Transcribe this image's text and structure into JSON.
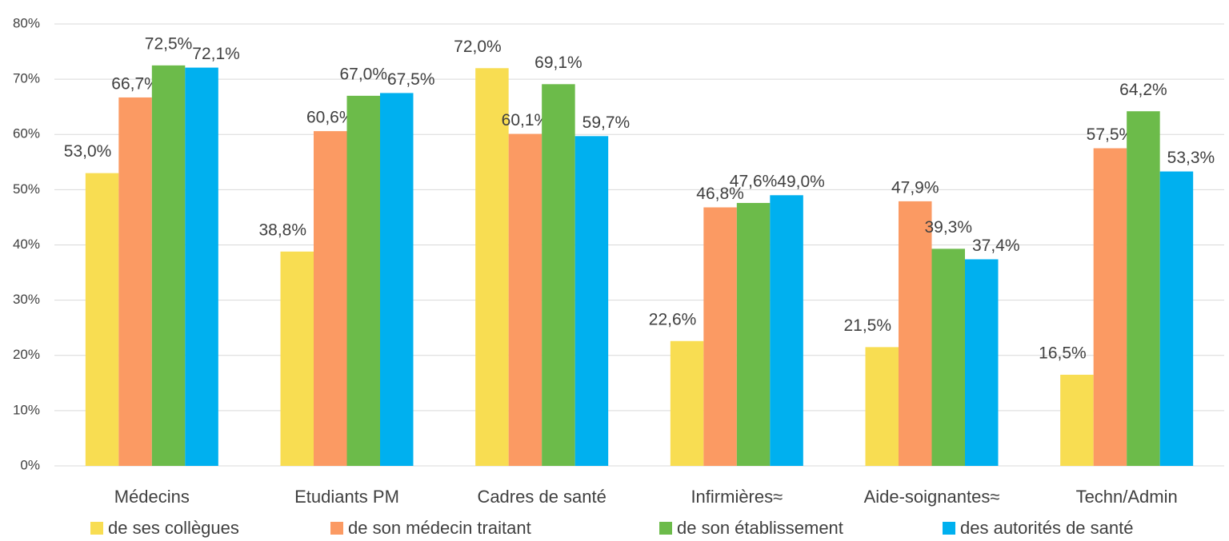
{
  "chart_data": {
    "type": "bar",
    "categories": [
      "Médecins",
      "Etudiants PM",
      "Cadres de santé",
      "Infirmières≈",
      "Aide-soignantes≈",
      "Techn/Admin"
    ],
    "series": [
      {
        "name": "de ses collègues",
        "color": "#f8dd52",
        "values": [
          53.0,
          38.8,
          72.0,
          22.6,
          21.5,
          16.5
        ],
        "value_labels": [
          "53,0%",
          "38,8%",
          "72,0%",
          "22,6%",
          "21,5%",
          "16,5%"
        ]
      },
      {
        "name": "de son médecin traitant",
        "color": "#fb9a63",
        "values": [
          66.7,
          60.6,
          60.1,
          46.8,
          47.9,
          57.5
        ],
        "value_labels": [
          "66,7%",
          "60,6%",
          "60,1%",
          "46,8%",
          "47,9%",
          "57,5%"
        ]
      },
      {
        "name": "de son établissement",
        "color": "#6cbb4a",
        "values": [
          72.5,
          67.0,
          69.1,
          47.6,
          39.3,
          64.2
        ],
        "value_labels": [
          "72,5%",
          "67,0%",
          "69,1%",
          "47,6%",
          "39,3%",
          "64,2%"
        ]
      },
      {
        "name": "des autorités de santé",
        "color": "#00b0ef",
        "values": [
          72.1,
          67.5,
          59.7,
          49.0,
          37.4,
          53.3
        ],
        "value_labels": [
          "72,1%",
          "67,5%",
          "59,7%",
          "49,0%",
          "37,4%",
          "53,3%"
        ]
      }
    ],
    "ylim": [
      0,
      80
    ],
    "yticks": [
      {
        "value": 0,
        "label": "0%"
      },
      {
        "value": 10,
        "label": "10%"
      },
      {
        "value": 20,
        "label": "20%"
      },
      {
        "value": 30,
        "label": "30%"
      },
      {
        "value": 40,
        "label": "40%"
      },
      {
        "value": 50,
        "label": "50%"
      },
      {
        "value": 60,
        "label": "60%"
      },
      {
        "value": 70,
        "label": "70%"
      },
      {
        "value": 80,
        "label": "80%"
      }
    ],
    "grid": true,
    "legend": "bottom"
  }
}
